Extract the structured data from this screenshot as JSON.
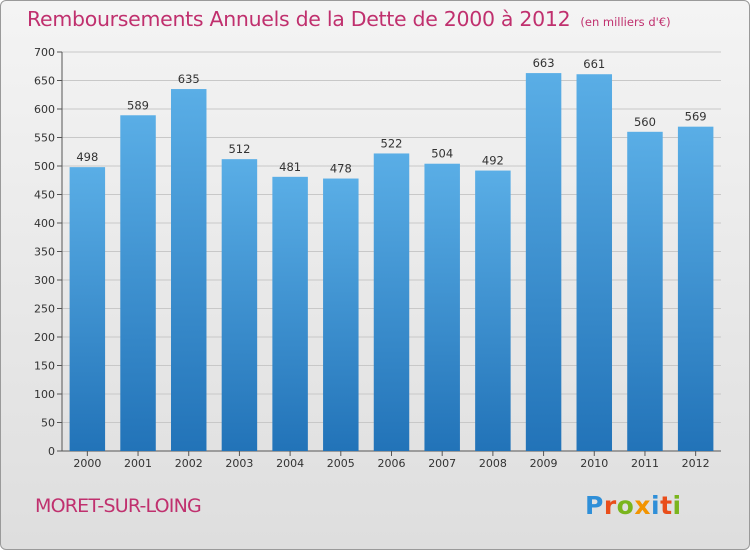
{
  "title": "Remboursements Annuels de la Dette de 2000 à 2012",
  "subtitle": "(en milliers d'€)",
  "commune": "MORET-SUR-LOING",
  "logo": {
    "letters": [
      "P",
      "r",
      "o",
      "x",
      "i",
      "t",
      "i"
    ],
    "colors": [
      "#2f8fd8",
      "#e94e1b",
      "#7ab51d",
      "#f29400",
      "#2f8fd8",
      "#e94e1b",
      "#7ab51d"
    ]
  },
  "colors": {
    "bar_top": "#5aaee6",
    "bar_bottom": "#2273b8",
    "axis": "#555555",
    "grid": "#c8c8c8",
    "text": "#333333",
    "title": "#c0306e"
  },
  "chart_data": {
    "type": "bar",
    "categories": [
      "2000",
      "2001",
      "2002",
      "2003",
      "2004",
      "2005",
      "2006",
      "2007",
      "2008",
      "2009",
      "2010",
      "2011",
      "2012"
    ],
    "values": [
      498,
      589,
      635,
      512,
      481,
      478,
      522,
      504,
      492,
      663,
      661,
      560,
      569
    ],
    "title": "Remboursements Annuels de la Dette de 2000 à 2012",
    "subtitle": "(en milliers d'€)",
    "xlabel": "",
    "ylabel": "",
    "ylim": [
      0,
      700
    ],
    "yticks": [
      0,
      50,
      100,
      150,
      200,
      250,
      300,
      350,
      400,
      450,
      500,
      550,
      600,
      650,
      700
    ],
    "grid": true,
    "data_labels": true
  }
}
